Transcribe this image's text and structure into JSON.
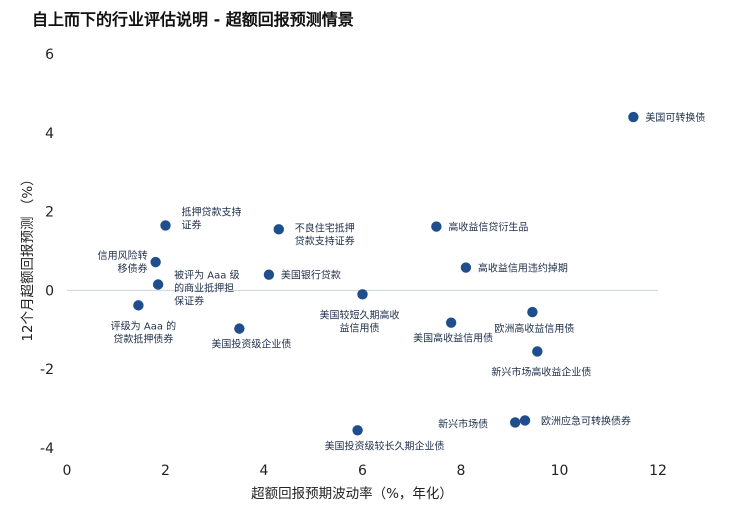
{
  "chart_data": {
    "type": "scatter",
    "title": "自上而下的行业评估说明 - 超额回报预测情景",
    "xlabel": "超额回报预期波动率（%，年化）",
    "ylabel": "12个月超额回报预测 （%）",
    "xlim": [
      0,
      12
    ],
    "ylim": [
      -4,
      6
    ],
    "xticks": [
      "0",
      "2",
      "4",
      "6",
      "8",
      "10",
      "12"
    ],
    "yticks": [
      "6",
      "4",
      "2",
      "0",
      "-2",
      "-4"
    ],
    "grid": false,
    "zero_line": true,
    "marker_color": "#1f4e8c",
    "points": [
      {
        "x": 11.5,
        "y": 4.4,
        "label": [
          "美国可转换债"
        ]
      },
      {
        "x": 2.0,
        "y": 1.65,
        "label": [
          "抵押贷款支持",
          "证券"
        ]
      },
      {
        "x": 4.3,
        "y": 1.55,
        "label": [
          "不良住宅抵押",
          "贷款支持证券"
        ]
      },
      {
        "x": 7.5,
        "y": 1.62,
        "label": [
          "高收益信贷衍生品"
        ]
      },
      {
        "x": 1.8,
        "y": 0.72,
        "label": [
          "信用风险转",
          "移债券"
        ]
      },
      {
        "x": 8.1,
        "y": 0.58,
        "label": [
          "高收益信用违约掉期"
        ]
      },
      {
        "x": 4.1,
        "y": 0.4,
        "label": [
          "美国银行贷款"
        ]
      },
      {
        "x": 1.85,
        "y": 0.15,
        "label": [
          "被评为 Aaa 级",
          "的商业抵押担",
          "保证券"
        ]
      },
      {
        "x": 6.0,
        "y": -0.1,
        "label": [
          "美国较短久期高收",
          "益信用债"
        ]
      },
      {
        "x": 1.45,
        "y": -0.38,
        "label": [
          "评级为 Aaa 的",
          "贷款抵押债券"
        ]
      },
      {
        "x": 9.45,
        "y": -0.55,
        "label": [
          "欧洲高收益信用债"
        ]
      },
      {
        "x": 7.8,
        "y": -0.82,
        "label": [
          "美国高收益信用债"
        ]
      },
      {
        "x": 3.5,
        "y": -0.97,
        "label": [
          "美国投资级企业债"
        ]
      },
      {
        "x": 9.55,
        "y": -1.55,
        "label": [
          "新兴市场高收益企业债"
        ]
      },
      {
        "x": 9.3,
        "y": -3.3,
        "label": [
          "欧洲应急可转换债券"
        ]
      },
      {
        "x": 9.1,
        "y": -3.35,
        "label": [
          "新兴市场债"
        ]
      },
      {
        "x": 5.9,
        "y": -3.55,
        "label": [
          "美国投资级较长久期企业债"
        ]
      }
    ]
  }
}
